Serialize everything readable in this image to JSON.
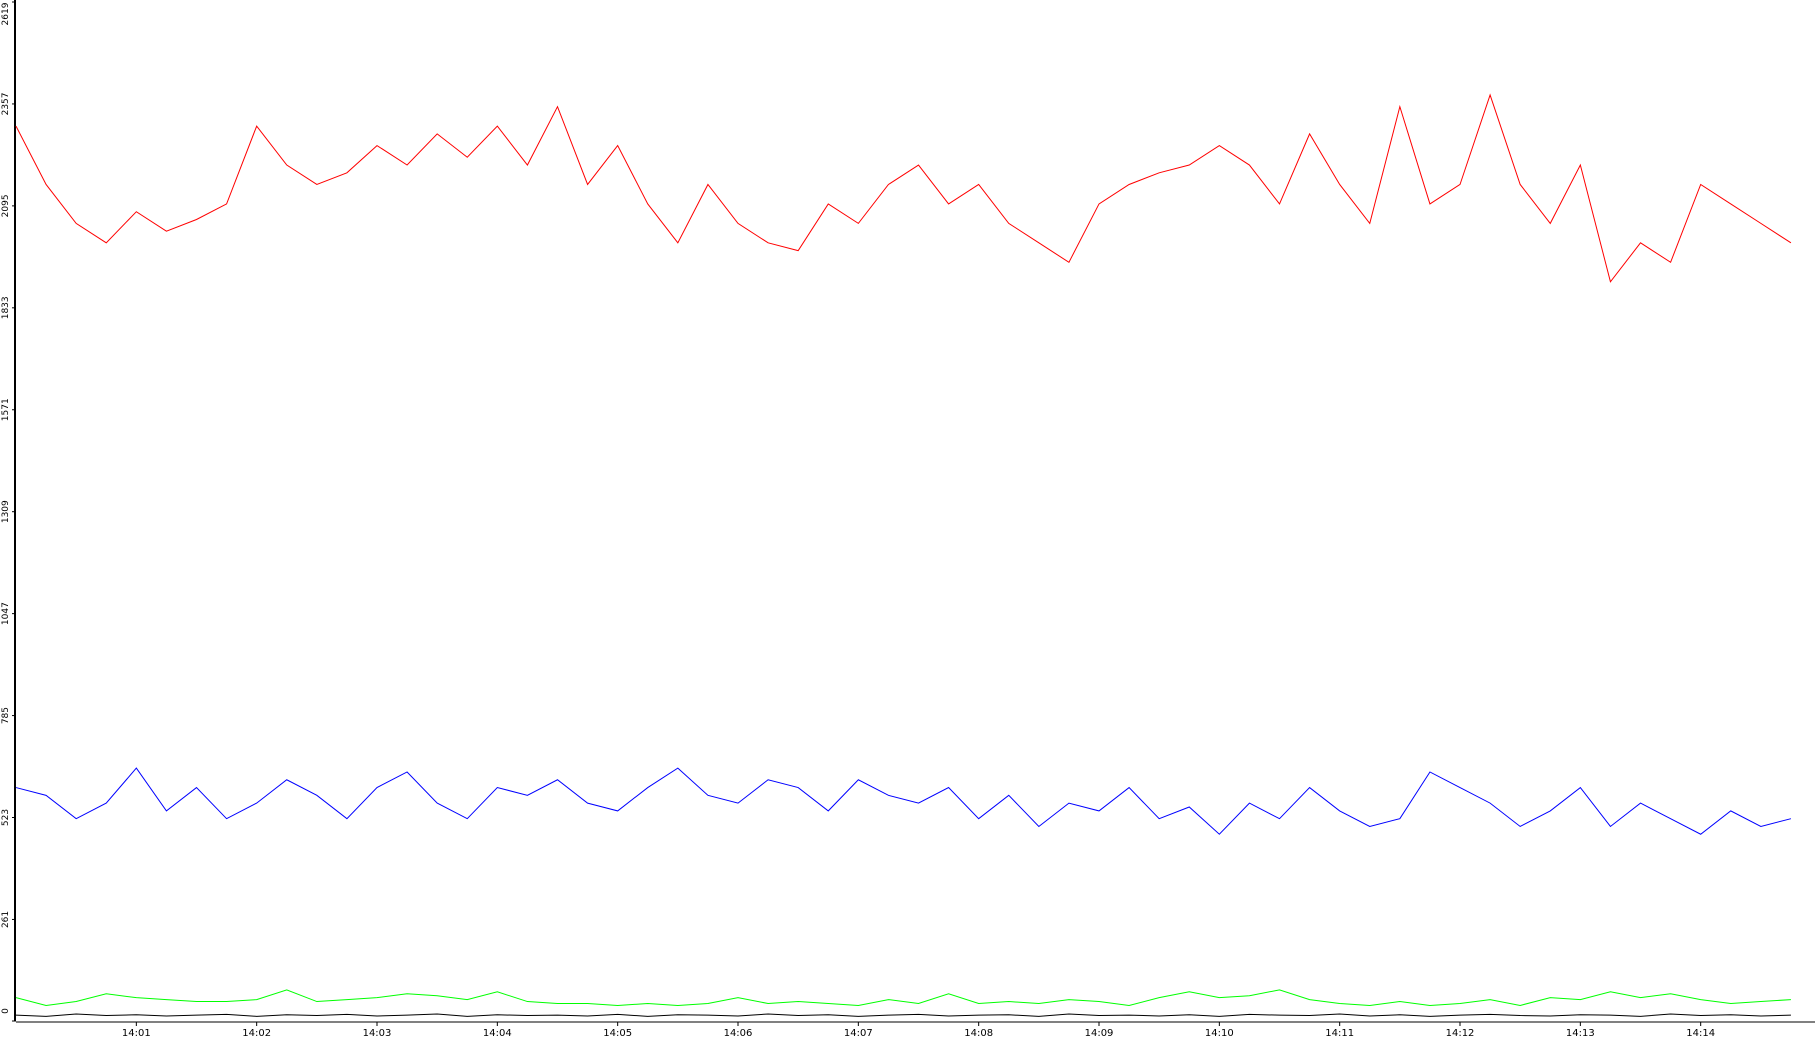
{
  "chart_data": {
    "type": "line",
    "x": [
      0,
      0.25,
      0.5,
      0.75,
      1,
      1.25,
      1.5,
      1.75,
      2,
      2.25,
      2.5,
      2.75,
      3,
      3.25,
      3.5,
      3.75,
      4,
      4.25,
      4.5,
      4.75,
      5,
      5.25,
      5.5,
      5.75,
      6,
      6.25,
      6.5,
      6.75,
      7,
      7.25,
      7.5,
      7.75,
      8,
      8.25,
      8.5,
      8.75,
      9,
      9.25,
      9.5,
      9.75,
      10,
      10.25,
      10.5,
      10.75,
      11,
      11.25,
      11.5,
      11.75,
      12,
      12.25,
      12.5,
      12.75,
      13,
      13.25,
      13.5,
      13.75,
      14,
      14.25,
      14.5,
      14.75
    ],
    "series": [
      {
        "color": "#ff0000",
        "values": [
          2300,
          2150,
          2050,
          2000,
          2080,
          2030,
          2060,
          2100,
          2300,
          2200,
          2150,
          2180,
          2250,
          2200,
          2280,
          2220,
          2300,
          2200,
          2350,
          2150,
          2250,
          2100,
          2000,
          2150,
          2050,
          2000,
          1980,
          2100,
          2050,
          2150,
          2200,
          2100,
          2150,
          2050,
          2000,
          1950,
          2100,
          2150,
          2180,
          2200,
          2250,
          2200,
          2100,
          2280,
          2150,
          2050,
          2350,
          2100,
          2150,
          2380,
          2150,
          2050,
          2200,
          1900,
          2000,
          1950,
          2150,
          2100,
          2050,
          2000
        ]
      },
      {
        "color": "#0000ff",
        "values": [
          600,
          580,
          520,
          560,
          650,
          540,
          600,
          520,
          560,
          620,
          580,
          520,
          600,
          640,
          560,
          520,
          600,
          580,
          620,
          560,
          540,
          600,
          650,
          580,
          560,
          620,
          600,
          540,
          620,
          580,
          560,
          600,
          520,
          580,
          500,
          560,
          540,
          600,
          520,
          550,
          480,
          560,
          520,
          600,
          540,
          500,
          520,
          640,
          600,
          560,
          500,
          540,
          600,
          500,
          560,
          520,
          480,
          540,
          500,
          520
        ]
      },
      {
        "color": "#00ff00",
        "values": [
          60,
          40,
          50,
          70,
          60,
          55,
          50,
          50,
          55,
          80,
          50,
          55,
          60,
          70,
          65,
          55,
          75,
          50,
          45,
          45,
          40,
          45,
          40,
          45,
          60,
          45,
          50,
          45,
          40,
          55,
          45,
          70,
          45,
          50,
          45,
          55,
          50,
          40,
          60,
          75,
          60,
          65,
          80,
          55,
          45,
          40,
          50,
          40,
          45,
          55,
          40,
          60,
          55,
          75,
          60,
          70,
          55,
          45,
          50,
          55
        ]
      },
      {
        "color": "#000000",
        "values": [
          15,
          12,
          18,
          14,
          16,
          13,
          15,
          17,
          12,
          16,
          14,
          17,
          13,
          15,
          18,
          12,
          16,
          14,
          15,
          13,
          17,
          12,
          16,
          15,
          13,
          18,
          14,
          16,
          12,
          15,
          17,
          13,
          15,
          16,
          12,
          18,
          14,
          15,
          13,
          16,
          12,
          17,
          15,
          14,
          18,
          13,
          16,
          12,
          15,
          17,
          14,
          13,
          16,
          15,
          12,
          18,
          14,
          16,
          13,
          15
        ]
      }
    ],
    "xlim": [
      0,
      14.95
    ],
    "xticks": [
      {
        "value": 1,
        "label": "14:01"
      },
      {
        "value": 2,
        "label": "14:02"
      },
      {
        "value": 3,
        "label": "14:03"
      },
      {
        "value": 4,
        "label": "14:04"
      },
      {
        "value": 5,
        "label": "14:05"
      },
      {
        "value": 6,
        "label": "14:06"
      },
      {
        "value": 7,
        "label": "14:07"
      },
      {
        "value": 8,
        "label": "14:08"
      },
      {
        "value": 9,
        "label": "14:09"
      },
      {
        "value": 10,
        "label": "14:10"
      },
      {
        "value": 11,
        "label": "14:11"
      },
      {
        "value": 12,
        "label": "14:12"
      },
      {
        "value": 13,
        "label": "14:13"
      },
      {
        "value": 14,
        "label": "14:14"
      }
    ],
    "ylim": [
      0,
      2619
    ],
    "yticks": [
      0,
      261,
      523,
      785,
      1047,
      1309,
      1571,
      1833,
      2095,
      2357,
      2619
    ]
  }
}
